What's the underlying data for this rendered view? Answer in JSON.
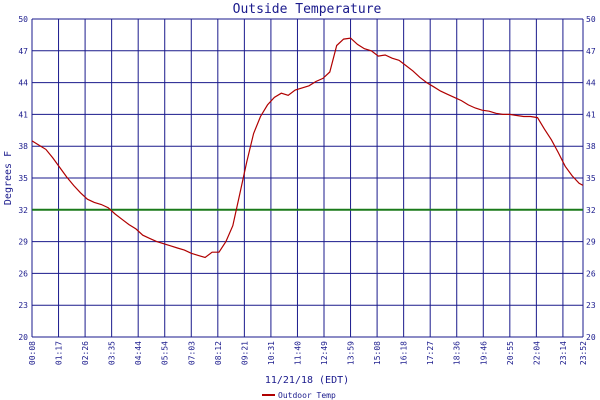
{
  "chart_data": {
    "type": "line",
    "title": "Outside Temperature",
    "xlabel": "11/21/18 (EDT)",
    "ylabel": "Degrees F",
    "ylim": [
      20,
      50
    ],
    "yticks": [
      20,
      23,
      26,
      29,
      32,
      35,
      38,
      41,
      44,
      47,
      50
    ],
    "xticks": [
      "00:08",
      "01:17",
      "02:26",
      "03:35",
      "04:44",
      "05:54",
      "07:03",
      "08:12",
      "09:21",
      "10:31",
      "11:40",
      "12:49",
      "13:59",
      "15:08",
      "16:18",
      "17:27",
      "18:36",
      "19:46",
      "20:55",
      "22:04",
      "23:14",
      "23:52"
    ],
    "grid": true,
    "reference_line": {
      "value": 32,
      "color": "#1a7a1a"
    },
    "colors": {
      "grid": "#1a1a8c",
      "series": "#b00000",
      "text": "#1a1a8c",
      "reference": "#1a7a1a"
    },
    "legend_position": "bottom-center",
    "series": [
      {
        "name": "Outdoor Temp",
        "color": "#b00000",
        "x_unit": "hours",
        "x": [
          0.0,
          0.3,
          0.6,
          0.9,
          1.2,
          1.5,
          1.8,
          2.1,
          2.4,
          2.7,
          3.0,
          3.3,
          3.6,
          3.9,
          4.2,
          4.5,
          4.8,
          5.1,
          5.4,
          5.7,
          6.0,
          6.3,
          6.6,
          6.9,
          7.2,
          7.5,
          7.8,
          8.1,
          8.4,
          8.7,
          9.0,
          9.3,
          9.6,
          9.9,
          10.2,
          10.5,
          10.8,
          11.1,
          11.4,
          11.7,
          12.0,
          12.3,
          12.6,
          12.9,
          13.2,
          13.5,
          13.8,
          14.1,
          14.4,
          14.7,
          15.0,
          15.3,
          15.6,
          15.9,
          16.2,
          16.5,
          16.8,
          17.1,
          17.4,
          17.7,
          18.0,
          18.3,
          18.6,
          18.9,
          19.2,
          19.5,
          19.8,
          20.1,
          20.4,
          20.7,
          21.0,
          21.3,
          21.6,
          21.9,
          22.2,
          22.5,
          22.8,
          23.1,
          23.4,
          23.7,
          23.87
        ],
        "y": [
          38.5,
          38.1,
          37.7,
          36.9,
          36.0,
          35.1,
          34.3,
          33.6,
          33.0,
          32.7,
          32.5,
          32.2,
          31.6,
          31.1,
          30.6,
          30.2,
          29.6,
          29.3,
          29.0,
          28.8,
          28.6,
          28.4,
          28.2,
          27.9,
          27.7,
          27.5,
          28.0,
          28.0,
          29.0,
          30.5,
          33.5,
          36.5,
          39.2,
          40.8,
          41.9,
          42.6,
          43.0,
          42.8,
          43.3,
          43.5,
          43.7,
          44.1,
          44.4,
          45.0,
          47.5,
          48.1,
          48.2,
          47.6,
          47.2,
          47.0,
          46.5,
          46.6,
          46.3,
          46.1,
          45.6,
          45.1,
          44.5,
          44.0,
          43.6,
          43.2,
          42.9,
          42.6,
          42.3,
          41.9,
          41.6,
          41.4,
          41.3,
          41.1,
          41.0,
          41.0,
          40.9,
          40.8,
          40.8,
          40.7,
          39.6,
          38.6,
          37.4,
          36.1,
          35.2,
          34.5,
          34.3
        ]
      }
    ]
  }
}
